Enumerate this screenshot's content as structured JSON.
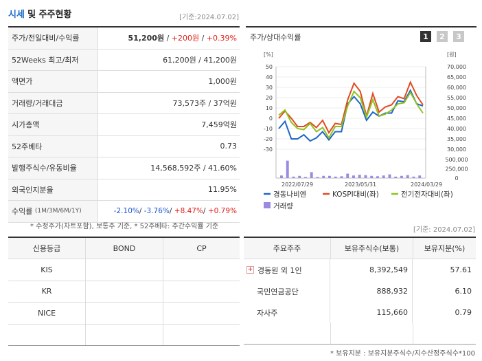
{
  "header": {
    "title_accent": "시세",
    "title_rest": "및 주주현황",
    "date_note": "[기준:2024.07.02]"
  },
  "summary": {
    "price_row": {
      "label": "주가/전일대비/수익률",
      "price": "51,200원",
      "change": "+200원",
      "pct": "+0.39%",
      "sep": " / "
    },
    "rows": [
      {
        "label": "52Weeks 최고/최저",
        "value": "61,200원 / 41,200원"
      },
      {
        "label": "액면가",
        "value": "1,000원"
      },
      {
        "label": "거래량/거래대금",
        "value": "73,573주 / 37억원"
      },
      {
        "label": "시가총액",
        "value": "7,459억원"
      },
      {
        "label": "52주베타",
        "value": "0.73"
      },
      {
        "label": "발행주식수/유동비율",
        "value": "14,568,592주 / 41.60%"
      },
      {
        "label": "외국인지분율",
        "value": "11.95%"
      }
    ],
    "returns_row": {
      "label": "수익률",
      "period": "(1M/3M/6M/1Y)",
      "v1": "-2.10%",
      "v2": "-3.76%",
      "v3": "+8.47%",
      "v4": "+0.79%",
      "sep": "/ "
    },
    "footnote": "* 수정주가(차트포함), 보통주 기준, * 52주베타: 주간수익률 기준"
  },
  "chart_panel": {
    "title": "주가/상대수익률",
    "buttons": [
      "1",
      "2",
      "3"
    ]
  },
  "chart_data": {
    "type": "line",
    "left_axis_unit": "[%]",
    "right_axis_unit": "[원]",
    "left_ticks": [
      "50",
      "40",
      "30",
      "20",
      "10",
      "0",
      "-10",
      "-20",
      "-30"
    ],
    "left_ylim": [
      -30,
      50
    ],
    "right_ticks": [
      "70,000",
      "65,000",
      "60,000",
      "55,000",
      "50,000",
      "45,000",
      "40,000",
      "35,000",
      "30,000"
    ],
    "right_ylim": [
      30000,
      70000
    ],
    "volume_ticks": [
      "500,000",
      "250,000",
      "0"
    ],
    "volume_ylim": [
      0,
      500000
    ],
    "x_ticks": [
      "2022/07/29",
      "2023/05/31",
      "2024/03/29"
    ],
    "series": [
      {
        "name": "경동나비엔",
        "color": "#1f66c8",
        "values": [
          -10,
          -3,
          -20,
          -20,
          -16,
          -22,
          -19,
          -13,
          -21,
          -13,
          -13,
          14,
          21,
          14,
          -2,
          6,
          2,
          5,
          5,
          17,
          16,
          27,
          14,
          12
        ]
      },
      {
        "name": "KOSPI대비(좌)",
        "color": "#e04b22",
        "values": [
          0,
          7,
          0,
          -8,
          -8,
          -4,
          -9,
          -2,
          -14,
          -5,
          -6,
          18,
          34,
          26,
          2,
          24,
          6,
          11,
          13,
          21,
          19,
          35,
          22,
          13
        ]
      },
      {
        "name": "전기전자대비(좌)",
        "color": "#8fc31f",
        "values": [
          3,
          8,
          -4,
          -10,
          -11,
          -5,
          -13,
          -9,
          -19,
          -8,
          -8,
          12,
          26,
          20,
          1,
          18,
          2,
          4,
          8,
          14,
          15,
          25,
          14,
          5
        ]
      }
    ],
    "volume": {
      "name": "거래량",
      "color": "#9b8be0",
      "values": [
        70000,
        470000,
        40000,
        60000,
        30000,
        160000,
        30000,
        60000,
        60000,
        40000,
        50000,
        120000,
        70000,
        90000,
        80000,
        60000,
        50000,
        70000,
        100000,
        40000,
        60000,
        80000,
        40000,
        70000
      ]
    }
  },
  "credit": {
    "headers": [
      "신용등급",
      "BOND",
      "CP"
    ],
    "rows": [
      [
        "KIS",
        "",
        ""
      ],
      [
        "KR",
        "",
        ""
      ],
      [
        "NICE",
        "",
        ""
      ],
      [
        "",
        "",
        ""
      ]
    ]
  },
  "holders": {
    "date_note": "[기준: 2024.07.02]",
    "headers": [
      "주요주주",
      "보유주식수(보통)",
      "보유지분(%)"
    ],
    "rows": [
      {
        "name": "경동원 외 1인",
        "shares": "8,392,549",
        "pct": "57.61",
        "expandable": true
      },
      {
        "name": "국민연금공단",
        "shares": "888,932",
        "pct": "6.10",
        "expandable": false
      },
      {
        "name": "자사주",
        "shares": "115,660",
        "pct": "0.79",
        "expandable": false
      }
    ],
    "expand_symbol": "+",
    "footnote": "* 보유지분 : 보유지분주식수/지수산정주식수*100"
  }
}
